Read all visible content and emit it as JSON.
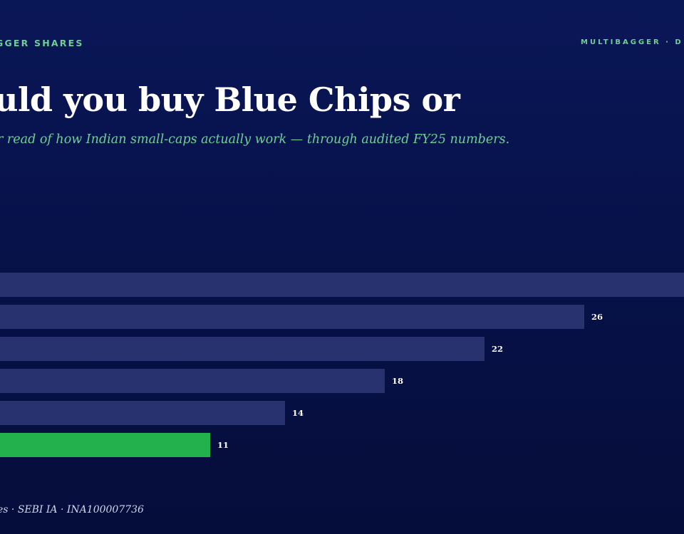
{
  "header": {
    "kicker_left": "GGER SHARES",
    "kicker_right": "MULTIBAGGER · D",
    "title": "uld you buy Blue Chips or",
    "subtitle": "r read of how Indian small-caps actually work — through audited FY25 numbers."
  },
  "footer": {
    "text": "es · SEBI IA · INA100007736"
  },
  "colors": {
    "background": "#0a1757",
    "accent_green": "#6fcf97",
    "bar_default": "#28326f",
    "bar_highlight": "#22b14c"
  },
  "chart_data": {
    "type": "bar",
    "orientation": "horizontal",
    "values": [
      30,
      26,
      22,
      18,
      14,
      11
    ],
    "labels": [
      "",
      "26",
      "22",
      "18",
      "14",
      "11"
    ],
    "highlight_index": 5,
    "xlim": [
      0,
      30
    ],
    "grid": false,
    "title": "",
    "xlabel": "",
    "ylabel": ""
  }
}
